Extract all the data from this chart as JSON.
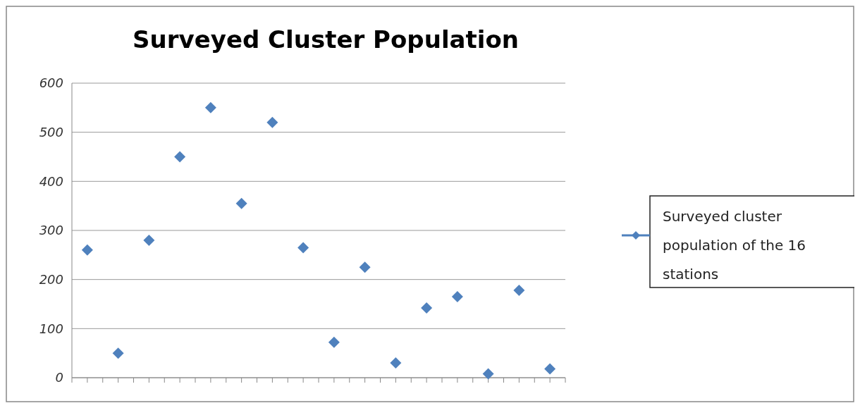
{
  "chart_data": {
    "type": "scatter",
    "title": "Surveyed Cluster Population",
    "categories": [
      null,
      null,
      null,
      null,
      null,
      null,
      null,
      null,
      null,
      null,
      null,
      null,
      null,
      null,
      null,
      null
    ],
    "series": [
      {
        "name": "Surveyed cluster population of the 16 stations",
        "color": "#4f81bd",
        "values": [
          260,
          50,
          280,
          450,
          550,
          355,
          520,
          265,
          72,
          225,
          30,
          142,
          165,
          8,
          178,
          18
        ]
      }
    ],
    "ylim": [
      0,
      600
    ],
    "yticks": [
      0,
      100,
      200,
      300,
      400,
      500,
      600
    ],
    "grid": "y",
    "legend": "right",
    "marker": "diamond"
  }
}
